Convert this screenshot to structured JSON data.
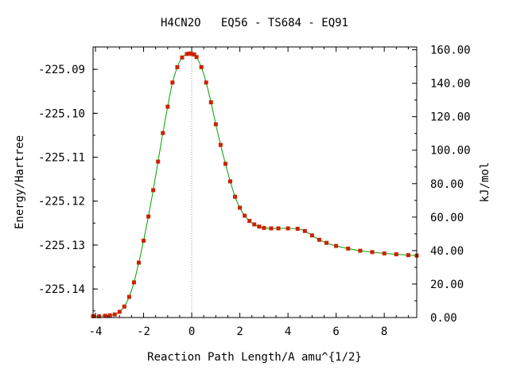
{
  "chart_data": {
    "type": "line",
    "title": "H4CN2O   EQ56 - TS684 - EQ91",
    "xlabel": "Reaction Path Length/A amu^{1/2}",
    "ylabel": "Energy/Hartree",
    "y2label": "kJ/mol",
    "xlim": [
      -4.1,
      9.35
    ],
    "ylim": [
      -225.1465,
      -225.0849
    ],
    "y2lim": [
      0.0,
      161.7
    ],
    "x_ticks": [
      "-4",
      "-2",
      "0",
      "2",
      "4",
      "6",
      "8"
    ],
    "y_ticks": [
      "-225.09",
      "-225.10",
      "-225.11",
      "-225.12",
      "-225.13",
      "-225.14"
    ],
    "y2_ticks": [
      "0.00",
      "20.00",
      "40.00",
      "60.00",
      "80.00",
      "100.00",
      "120.00",
      "140.00",
      "160.00"
    ],
    "ts_marker_x": 0.0,
    "grid": false,
    "line_color": "#00a000",
    "marker_color": "#cc2200",
    "guide_color": "#999999",
    "series": [
      {
        "x": [
          -4.1,
          -3.85,
          -3.6,
          -3.4,
          -3.2,
          -3.0,
          -2.8,
          -2.6,
          -2.4,
          -2.2,
          -2.0,
          -1.8,
          -1.6,
          -1.4,
          -1.2,
          -1.0,
          -0.8,
          -0.6,
          -0.4,
          -0.2,
          -0.1,
          0.0,
          0.1,
          0.2,
          0.4,
          0.6,
          0.8,
          1.0,
          1.2,
          1.4,
          1.6,
          1.8,
          2.0,
          2.2,
          2.4,
          2.6,
          2.8,
          3.0,
          3.3,
          3.6,
          4.0,
          4.4,
          4.7,
          5.0,
          5.3,
          5.6,
          6.0,
          6.5,
          7.0,
          7.5,
          8.0,
          8.5,
          9.0,
          9.35
        ],
        "y": [
          -225.1462,
          -225.1462,
          -225.1461,
          -225.146,
          -225.1458,
          -225.1452,
          -225.144,
          -225.1418,
          -225.1385,
          -225.134,
          -225.129,
          -225.1235,
          -225.1175,
          -225.111,
          -225.1045,
          -225.0985,
          -225.093,
          -225.0895,
          -225.0873,
          -225.0865,
          -225.0864,
          -225.0865,
          -225.0866,
          -225.0872,
          -225.0895,
          -225.093,
          -225.0975,
          -225.1025,
          -225.1072,
          -225.1115,
          -225.1155,
          -225.119,
          -225.1215,
          -225.1233,
          -225.1245,
          -225.1253,
          -225.1258,
          -225.1261,
          -225.1262,
          -225.1262,
          -225.1262,
          -225.1263,
          -225.1268,
          -225.1278,
          -225.1288,
          -225.1295,
          -225.1302,
          -225.1308,
          -225.1313,
          -225.1316,
          -225.1319,
          -225.1321,
          -225.1323,
          -225.1324
        ]
      }
    ]
  }
}
